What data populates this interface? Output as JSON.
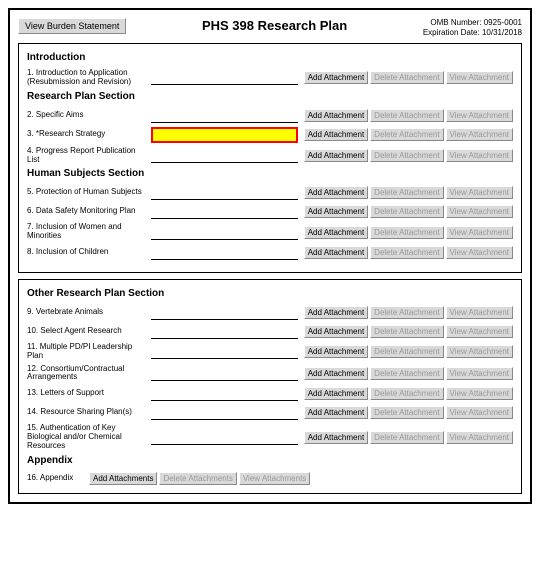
{
  "header": {
    "viewBurden": "View Burden Statement",
    "title": "PHS 398 Research Plan",
    "omb": "OMB Number: 0925-0001",
    "exp": "Expiration Date: 10/31/2018"
  },
  "buttons": {
    "add": "Add Attachment",
    "del": "Delete Attachment",
    "view": "View Attachment",
    "addp": "Add Attachments",
    "delp": "Delete Attachments",
    "viewp": "View Attachments"
  },
  "sections": [
    {
      "heading": "Introduction",
      "rows": [
        {
          "n": "1.",
          "label": "Introduction to Application (Resubmission and Revision)",
          "hi": false
        }
      ]
    },
    {
      "heading": "Research Plan Section",
      "rows": [
        {
          "n": "2.",
          "label": "Specific Aims",
          "hi": false
        },
        {
          "n": "3.",
          "label": "*Research Strategy",
          "hi": true
        },
        {
          "n": "4.",
          "label": "Progress Report Publication List",
          "hi": false
        }
      ]
    },
    {
      "heading": "Human Subjects Section",
      "rows": [
        {
          "n": "5.",
          "label": "Protection of Human Subjects",
          "hi": false
        },
        {
          "n": "6.",
          "label": "Data Safety Monitoring Plan",
          "hi": false
        },
        {
          "n": "7.",
          "label": "Inclusion of Women and Minorities",
          "hi": false
        },
        {
          "n": "8.",
          "label": "Inclusion of Children",
          "hi": false
        }
      ]
    }
  ],
  "otherHeading": "Other Research Plan Section",
  "otherRows": [
    {
      "n": "9.",
      "label": "Vertebrate Animals"
    },
    {
      "n": "10.",
      "label": "Select Agent Research"
    },
    {
      "n": "11.",
      "label": "Multiple PD/PI Leadership Plan"
    },
    {
      "n": "12.",
      "label": "Consortium/Contractual Arrangements"
    },
    {
      "n": "13.",
      "label": "Letters of Support"
    },
    {
      "n": "14.",
      "label": "Resource Sharing Plan(s)"
    },
    {
      "n": "15.",
      "label": "Authentication of Key Biological and/or Chemical Resources"
    }
  ],
  "appendixHeading": "Appendix",
  "appendix": {
    "n": "16.",
    "label": "Appendix"
  }
}
